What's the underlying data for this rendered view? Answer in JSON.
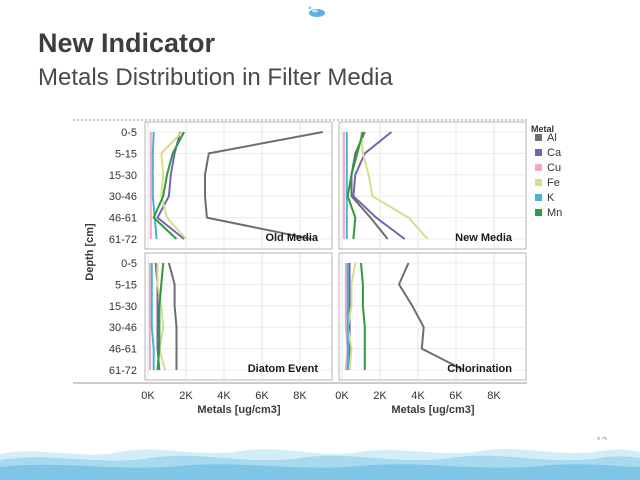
{
  "slide": {
    "title": "New Indicator",
    "subtitle": "Metals Distribution in Filter Media",
    "page_number": "12"
  },
  "chart_data": {
    "type": "line",
    "xlabel": "Metals [ug/cm3]",
    "ylabel": "Depth [cm]",
    "depth_categories": [
      "0-5",
      "5-15",
      "15-30",
      "30-46",
      "46-61",
      "61-72"
    ],
    "x_tick_labels": [
      "0K",
      "2K",
      "4K",
      "6K",
      "8K"
    ],
    "xlim": [
      0,
      10000
    ],
    "legend": {
      "title": "Metal",
      "position": "right",
      "entries": [
        {
          "name": "Al",
          "color": "#6e6e6e"
        },
        {
          "name": "Ca",
          "color": "#7b5fb2"
        },
        {
          "name": "Cu",
          "color": "#f2a8c4"
        },
        {
          "name": "Fe",
          "color": "#d6de8a"
        },
        {
          "name": "K",
          "color": "#3fb6d6"
        },
        {
          "name": "Mn",
          "color": "#2e9a3c"
        }
      ]
    },
    "panels": [
      {
        "label": "Old Media",
        "series": [
          {
            "name": "Al",
            "values": [
              9200,
              3200,
              3000,
              3000,
              3100,
              8600
            ]
          },
          {
            "name": "Ca",
            "values": [
              1700,
              1400,
              1200,
              1100,
              500,
              1900
            ]
          },
          {
            "name": "Cu",
            "values": [
              150,
              150,
              150,
              150,
              150,
              150
            ]
          },
          {
            "name": "Fe",
            "values": [
              1800,
              700,
              800,
              700,
              1000,
              2000
            ]
          },
          {
            "name": "K",
            "values": [
              300,
              250,
              250,
              250,
              350,
              450
            ]
          },
          {
            "name": "Mn",
            "values": [
              1900,
              1300,
              1000,
              800,
              300,
              1500
            ]
          }
        ]
      },
      {
        "label": "New Media",
        "series": [
          {
            "name": "Al",
            "values": [
              1200,
              700,
              500,
              500,
              1500,
              2400
            ]
          },
          {
            "name": "Ca",
            "values": [
              2600,
              1200,
              700,
              600,
              1800,
              3300
            ]
          },
          {
            "name": "Cu",
            "values": [
              100,
              100,
              100,
              100,
              100,
              100
            ]
          },
          {
            "name": "Fe",
            "values": [
              1000,
              1100,
              1400,
              1600,
              3500,
              4500
            ]
          },
          {
            "name": "K",
            "values": [
              250,
              250,
              250,
              250,
              250,
              250
            ]
          },
          {
            "name": "Mn",
            "values": [
              1100,
              800,
              500,
              300,
              700,
              600
            ]
          }
        ]
      },
      {
        "label": "Diatom Event",
        "series": [
          {
            "name": "Al",
            "values": [
              1100,
              1400,
              1400,
              1500,
              1500,
              1500
            ]
          },
          {
            "name": "Ca",
            "values": [
              400,
              500,
              500,
              500,
              500,
              600
            ]
          },
          {
            "name": "Cu",
            "values": [
              100,
              100,
              100,
              100,
              100,
              100
            ]
          },
          {
            "name": "Fe",
            "values": [
              500,
              500,
              700,
              800,
              600,
              900
            ]
          },
          {
            "name": "K",
            "values": [
              200,
              200,
              200,
              200,
              300,
              300
            ]
          },
          {
            "name": "Mn",
            "values": [
              800,
              700,
              600,
              600,
              600,
              500
            ]
          }
        ]
      },
      {
        "label": "Chlorination",
        "series": [
          {
            "name": "Al",
            "values": [
              3500,
              3000,
              3700,
              4300,
              4200,
              6400
            ]
          },
          {
            "name": "Ca",
            "values": [
              400,
              400,
              400,
              400,
              400,
              400
            ]
          },
          {
            "name": "Cu",
            "values": [
              200,
              200,
              200,
              200,
              300,
              200
            ]
          },
          {
            "name": "Fe",
            "values": [
              700,
              500,
              500,
              300,
              500,
              400
            ]
          },
          {
            "name": "K",
            "values": [
              300,
              300,
              300,
              300,
              300,
              300
            ]
          },
          {
            "name": "Mn",
            "values": [
              1000,
              1100,
              1100,
              1200,
              1200,
              1200
            ]
          }
        ]
      }
    ]
  }
}
